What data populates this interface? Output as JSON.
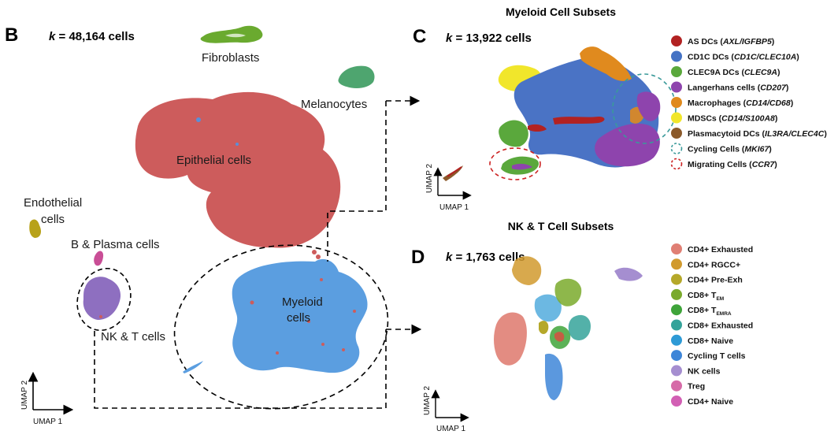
{
  "panel_b": {
    "letter": "B",
    "k_var": "k",
    "k_text": " = 48,164 cells",
    "labels": {
      "fibroblasts": "Fibroblasts",
      "melanocytes": "Melanocytes",
      "epithelial": "Epithelial cells",
      "endothelial_line1": "Endothelial",
      "endothelial_line2": "cells",
      "b_plasma": "B & Plasma cells",
      "nk_t": "NK & T cells",
      "myeloid_line1": "Myeloid",
      "myeloid_line2": "cells"
    },
    "axes": {
      "y": "UMAP 2",
      "x": "UMAP 1"
    }
  },
  "panel_c": {
    "title": "Myeloid Cell Subsets",
    "letter": "C",
    "k_var": "k",
    "k_text": " = 13,922 cells",
    "axes": {
      "y": "UMAP 2",
      "x": "UMAP 1"
    },
    "legend": [
      {
        "name": "AS DCs (",
        "marker": "AXL/IGFBP5",
        "close": ")",
        "color": "#b22222",
        "style": "filled"
      },
      {
        "name": "CD1C DCs (",
        "marker": "CD1C/CLEC10A",
        "close": ")",
        "color": "#4472c4",
        "style": "filled"
      },
      {
        "name": "CLEC9A DCs (",
        "marker": "CLEC9A",
        "close": ")",
        "color": "#5aa83c",
        "style": "filled"
      },
      {
        "name": "Langerhans cells (",
        "marker": "CD207",
        "close": ")",
        "color": "#8e44ad",
        "style": "filled"
      },
      {
        "name": "Macrophages (",
        "marker": "CD14/CD68",
        "close": ")",
        "color": "#e08a1e",
        "style": "filled"
      },
      {
        "name": "MDSCs (",
        "marker": "CD14/S100A8",
        "close": ")",
        "color": "#f1e62b",
        "style": "filled"
      },
      {
        "name": "Plasmacytoid DCs (",
        "marker": "IL3RA/CLEC4C",
        "close": ")",
        "color": "#8b5a2b",
        "style": "filled"
      },
      {
        "name": "Cycling Cells (",
        "marker": "MKI67",
        "close": ")",
        "color": "#3a9a9a",
        "style": "dashed"
      },
      {
        "name": "Migrating Cells (",
        "marker": "CCR7",
        "close": ")",
        "color": "#cc2222",
        "style": "dashed"
      }
    ]
  },
  "panel_d": {
    "title": "NK & T Cell Subsets",
    "letter": "D",
    "k_var": "k",
    "k_text": " = 1,763 cells",
    "axes": {
      "y": "UMAP 2",
      "x": "UMAP 1"
    },
    "legend": [
      {
        "name": "CD4+ Exhausted",
        "sub": "",
        "color": "#e07f74"
      },
      {
        "name": "CD4+ RGCC+",
        "sub": "",
        "color": "#d19a2e"
      },
      {
        "name": "CD4+ Pre-Exh",
        "sub": "",
        "color": "#b5a82a"
      },
      {
        "name": "CD8+ T",
        "sub": "EM",
        "color": "#7aaa2c"
      },
      {
        "name": "CD8+ T",
        "sub": "EMRA",
        "color": "#3fa43a"
      },
      {
        "name": "CD8+ Exhausted",
        "sub": "",
        "color": "#35a39a"
      },
      {
        "name": "CD8+ Naive",
        "sub": "",
        "color": "#2e9ad6"
      },
      {
        "name": "Cycling T cells",
        "sub": "",
        "color": "#3e86d8"
      },
      {
        "name": "NK cells",
        "sub": "",
        "color": "#a58ed0"
      },
      {
        "name": "Treg",
        "sub": "",
        "color": "#d66ba8"
      },
      {
        "name": "CD4+ Naive",
        "sub": "",
        "color": "#d25fb4"
      }
    ]
  }
}
